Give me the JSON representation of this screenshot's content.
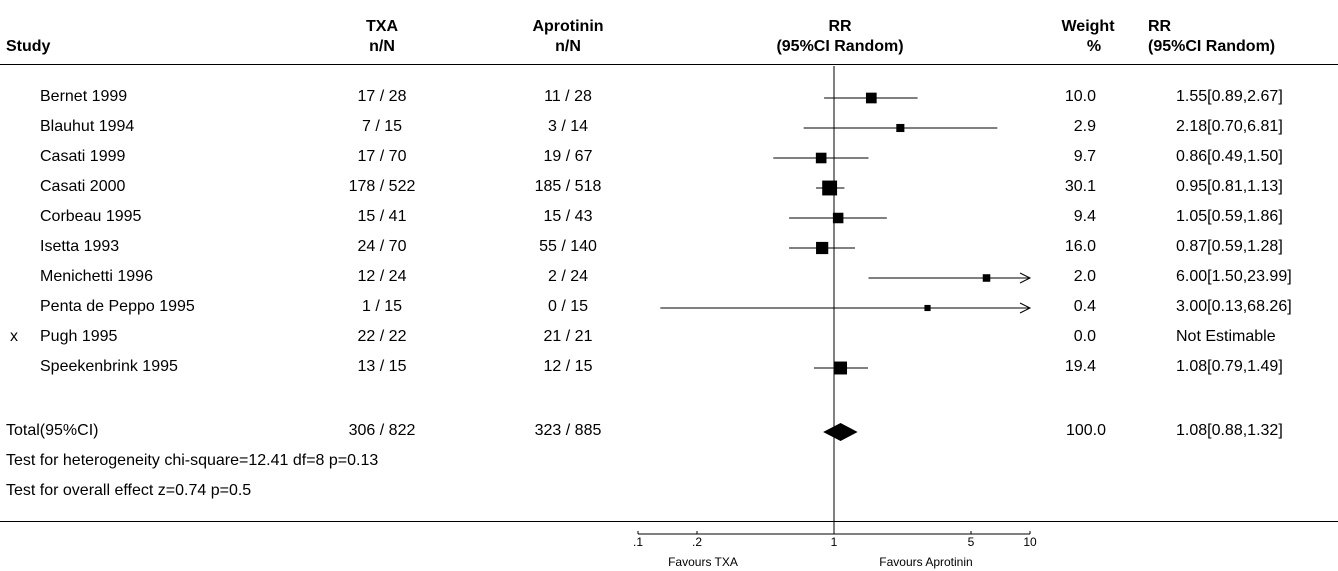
{
  "columns": {
    "study": "Study",
    "txa": [
      "TXA",
      "n/N"
    ],
    "aprotinin": [
      "Aprotinin",
      "n/N"
    ],
    "rr_plot": [
      "RR",
      "(95%CI Random)"
    ],
    "weight": [
      "Weight",
      "%"
    ],
    "rr_text": [
      "RR",
      "(95%CI Random)"
    ]
  },
  "studies": [
    {
      "marker": "",
      "name": "Bernet 1999",
      "txa": "17 / 28",
      "aprotinin": "11 / 28",
      "weight": "10.0",
      "rr_text": "1.55[0.89,2.67]"
    },
    {
      "marker": "",
      "name": "Blauhut 1994",
      "txa": "7 / 15",
      "aprotinin": "3 / 14",
      "weight": "2.9",
      "rr_text": "2.18[0.70,6.81]"
    },
    {
      "marker": "",
      "name": "Casati 1999",
      "txa": "17 / 70",
      "aprotinin": "19 / 67",
      "weight": "9.7",
      "rr_text": "0.86[0.49,1.50]"
    },
    {
      "marker": "",
      "name": "Casati 2000",
      "txa": "178 / 522",
      "aprotinin": "185 / 518",
      "weight": "30.1",
      "rr_text": "0.95[0.81,1.13]"
    },
    {
      "marker": "",
      "name": "Corbeau 1995",
      "txa": "15 / 41",
      "aprotinin": "15 / 43",
      "weight": "9.4",
      "rr_text": "1.05[0.59,1.86]"
    },
    {
      "marker": "",
      "name": "Isetta 1993",
      "txa": "24 / 70",
      "aprotinin": "55 / 140",
      "weight": "16.0",
      "rr_text": "0.87[0.59,1.28]"
    },
    {
      "marker": "",
      "name": "Menichetti 1996",
      "txa": "12 / 24",
      "aprotinin": "2 / 24",
      "weight": "2.0",
      "rr_text": "6.00[1.50,23.99]"
    },
    {
      "marker": "",
      "name": "Penta de Peppo 1995",
      "txa": "1 / 15",
      "aprotinin": "0 / 15",
      "weight": "0.4",
      "rr_text": "3.00[0.13,68.26]"
    },
    {
      "marker": "x",
      "name": "Pugh 1995",
      "txa": "22 / 22",
      "aprotinin": "21 / 21",
      "weight": "0.0",
      "rr_text": "Not Estimable"
    },
    {
      "marker": "",
      "name": "Speekenbrink 1995",
      "txa": "13 / 15",
      "aprotinin": "12 / 15",
      "weight": "19.4",
      "rr_text": "1.08[0.79,1.49]"
    }
  ],
  "total": {
    "name": "Total(95%CI)",
    "txa": "306 / 822",
    "aprotinin": "323 / 885",
    "weight": "100.0",
    "rr_text": "1.08[0.88,1.32]"
  },
  "tests": {
    "heterogeneity": "Test for heterogeneity chi-square=12.41  df=8  p=0.13",
    "overall": "Test for overall effect  z=0.74  p=0.5"
  },
  "axis": {
    "favours_left": "Favours TXA",
    "favours_right": "Favours Aprotinin"
  },
  "chart_data": {
    "type": "forest",
    "scale": "log",
    "xlim": [
      0.1,
      10
    ],
    "ticks": [
      {
        "value": 0.1,
        "label": ".1"
      },
      {
        "value": 0.2,
        "label": ".2"
      },
      {
        "value": 1,
        "label": "1"
      },
      {
        "value": 5,
        "label": "5"
      },
      {
        "value": 10,
        "label": "10"
      }
    ],
    "reference_line": 1,
    "points": [
      {
        "study": "Bernet 1999",
        "rr": 1.55,
        "lo": 0.89,
        "hi": 2.67,
        "weight": 10.0
      },
      {
        "study": "Blauhut 1994",
        "rr": 2.18,
        "lo": 0.7,
        "hi": 6.81,
        "weight": 2.9
      },
      {
        "study": "Casati 1999",
        "rr": 0.86,
        "lo": 0.49,
        "hi": 1.5,
        "weight": 9.7
      },
      {
        "study": "Casati 2000",
        "rr": 0.95,
        "lo": 0.81,
        "hi": 1.13,
        "weight": 30.1
      },
      {
        "study": "Corbeau 1995",
        "rr": 1.05,
        "lo": 0.59,
        "hi": 1.86,
        "weight": 9.4
      },
      {
        "study": "Isetta 1993",
        "rr": 0.87,
        "lo": 0.59,
        "hi": 1.28,
        "weight": 16.0
      },
      {
        "study": "Menichetti 1996",
        "rr": 6.0,
        "lo": 1.5,
        "hi": 23.99,
        "weight": 2.0
      },
      {
        "study": "Penta de Peppo 1995",
        "rr": 3.0,
        "lo": 0.13,
        "hi": 68.26,
        "weight": 0.4
      },
      {
        "study": "Pugh 1995",
        "rr": null,
        "lo": null,
        "hi": null,
        "weight": 0.0
      },
      {
        "study": "Speekenbrink 1995",
        "rr": 1.08,
        "lo": 0.79,
        "hi": 1.49,
        "weight": 19.4
      }
    ],
    "pooled": {
      "rr": 1.08,
      "lo": 0.88,
      "hi": 1.32
    }
  }
}
